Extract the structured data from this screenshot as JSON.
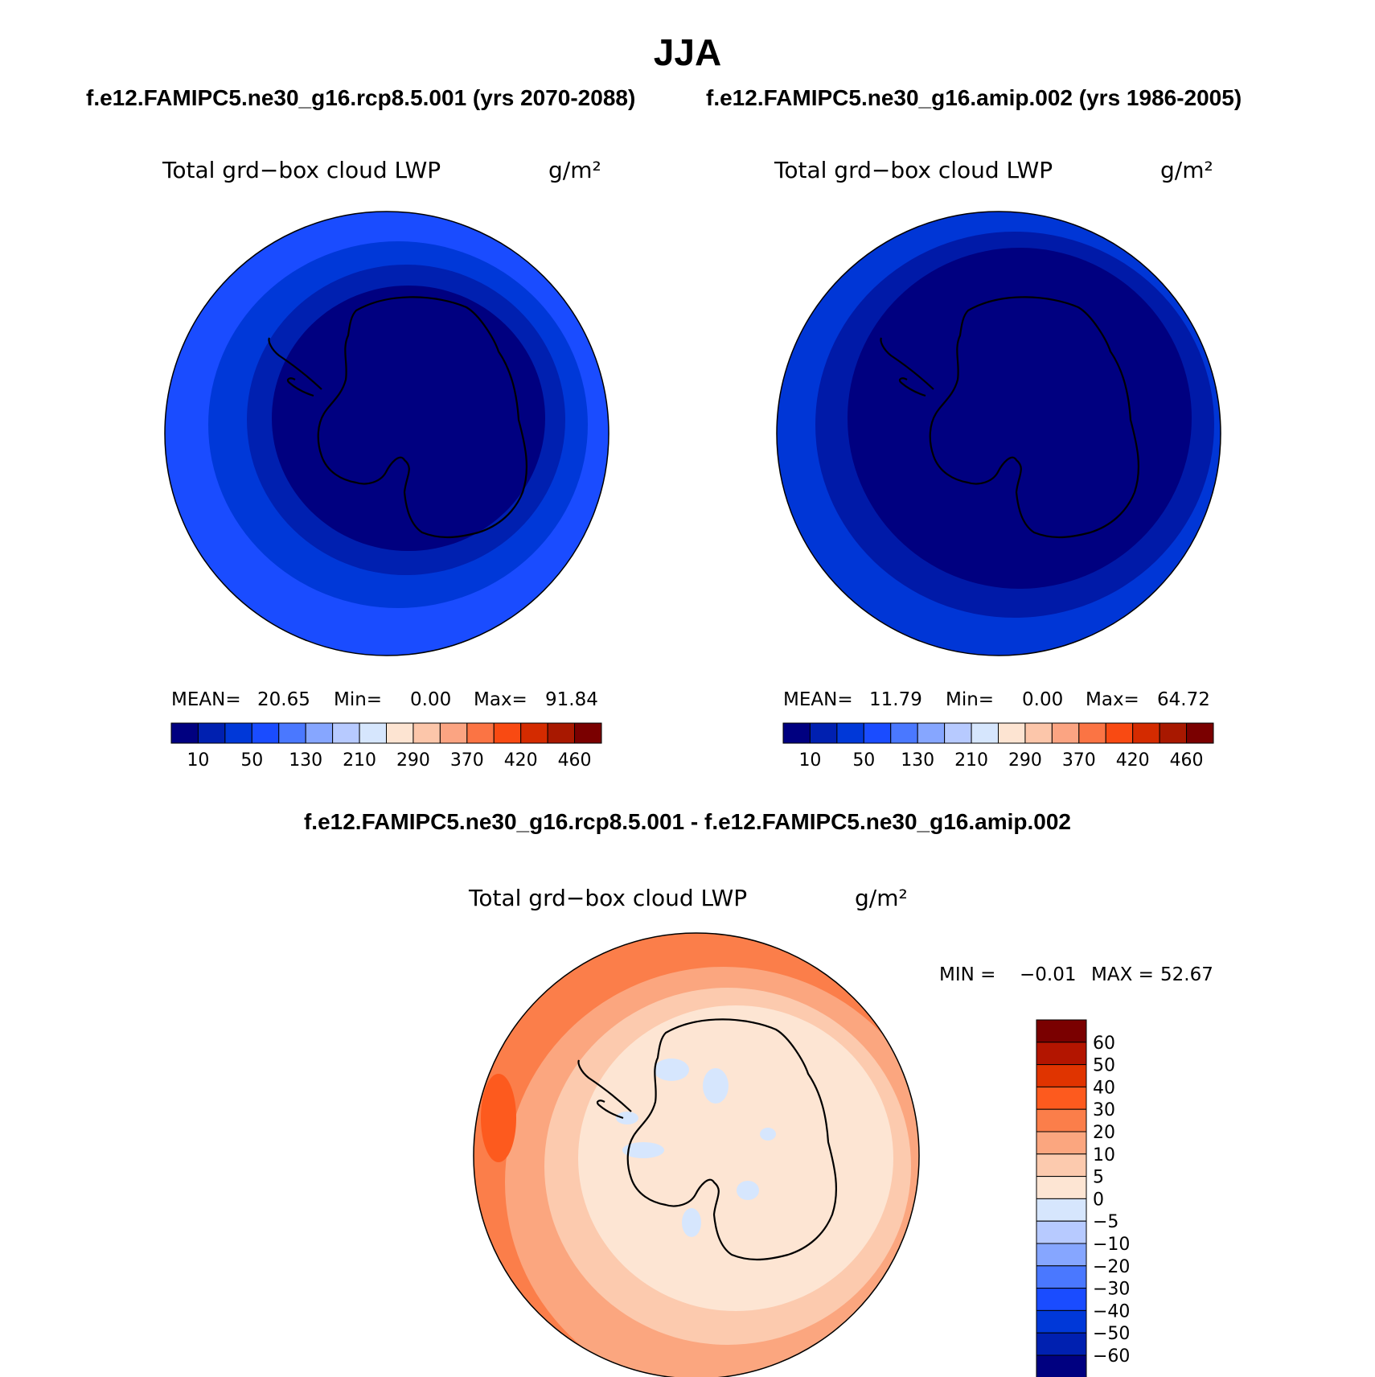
{
  "header": {
    "title": "JJA",
    "case1": "f.e12.FAMIPC5.ne30_g16.rcp8.5.001 (yrs 2070-2088)",
    "case2": "f.e12.FAMIPC5.ne30_g16.amip.002 (yrs 1986-2005)",
    "diff_title": "f.e12.FAMIPC5.ne30_g16.rcp8.5.001 - f.e12.FAMIPC5.ne30_g16.amip.002"
  },
  "panels": [
    {
      "variable": "Total grd−box cloud LWP",
      "units": "g/m²",
      "stats": {
        "mean_label": "MEAN=",
        "mean": "20.65",
        "min_label": "Min=",
        "min": "0.00",
        "max_label": "Max=",
        "max": "91.84"
      },
      "bands": [
        "#000080",
        "#0020b0",
        "#0038d8"
      ]
    },
    {
      "variable": "Total grd−box cloud LWP",
      "units": "g/m²",
      "stats": {
        "mean_label": "MEAN=",
        "mean": "11.79",
        "min_label": "Min=",
        "min": "0.00",
        "max_label": "Max=",
        "max": "64.72"
      },
      "bands": [
        "#000080",
        "#001aa8",
        "#0036d6"
      ]
    },
    {
      "variable": "Total grd−box cloud LWP",
      "units": "g/m²",
      "stats": {
        "min_label": "MIN =",
        "min": "−0.01",
        "max_label": "MAX =",
        "max": "52.67"
      }
    }
  ],
  "abs_colorbar": {
    "colors": [
      "#000080",
      "#0020b0",
      "#0038d8",
      "#1a4cff",
      "#4a78ff",
      "#86a6ff",
      "#b7caff",
      "#d6e6fd",
      "#fde4d2",
      "#fcc6aa",
      "#fba482",
      "#fb7444",
      "#f94a12",
      "#d42b00",
      "#a81800",
      "#7a0000"
    ],
    "labels": [
      "10",
      "50",
      "130",
      "210",
      "290",
      "370",
      "420",
      "460"
    ]
  },
  "diff_colorbar": {
    "colors": [
      "#7a0000",
      "#b31500",
      "#e03400",
      "#fd5a1e",
      "#fb7e4a",
      "#fba67f",
      "#fccaae",
      "#fde5d3",
      "#d6e6fd",
      "#b7caff",
      "#86a6ff",
      "#4a78ff",
      "#1a4cff",
      "#0038d8",
      "#0020b0",
      "#000080"
    ],
    "labels": [
      "60",
      "50",
      "40",
      "30",
      "20",
      "10",
      "5",
      "0",
      "−5",
      "−10",
      "−20",
      "−30",
      "−40",
      "−50",
      "−60"
    ]
  },
  "diff_map": {
    "bands": [
      "#fb7e4a",
      "#fba67f",
      "#fccaae",
      "#fde5d3"
    ],
    "negative_color": "#d6e6fd",
    "max_color": "#fd5a1e"
  }
}
